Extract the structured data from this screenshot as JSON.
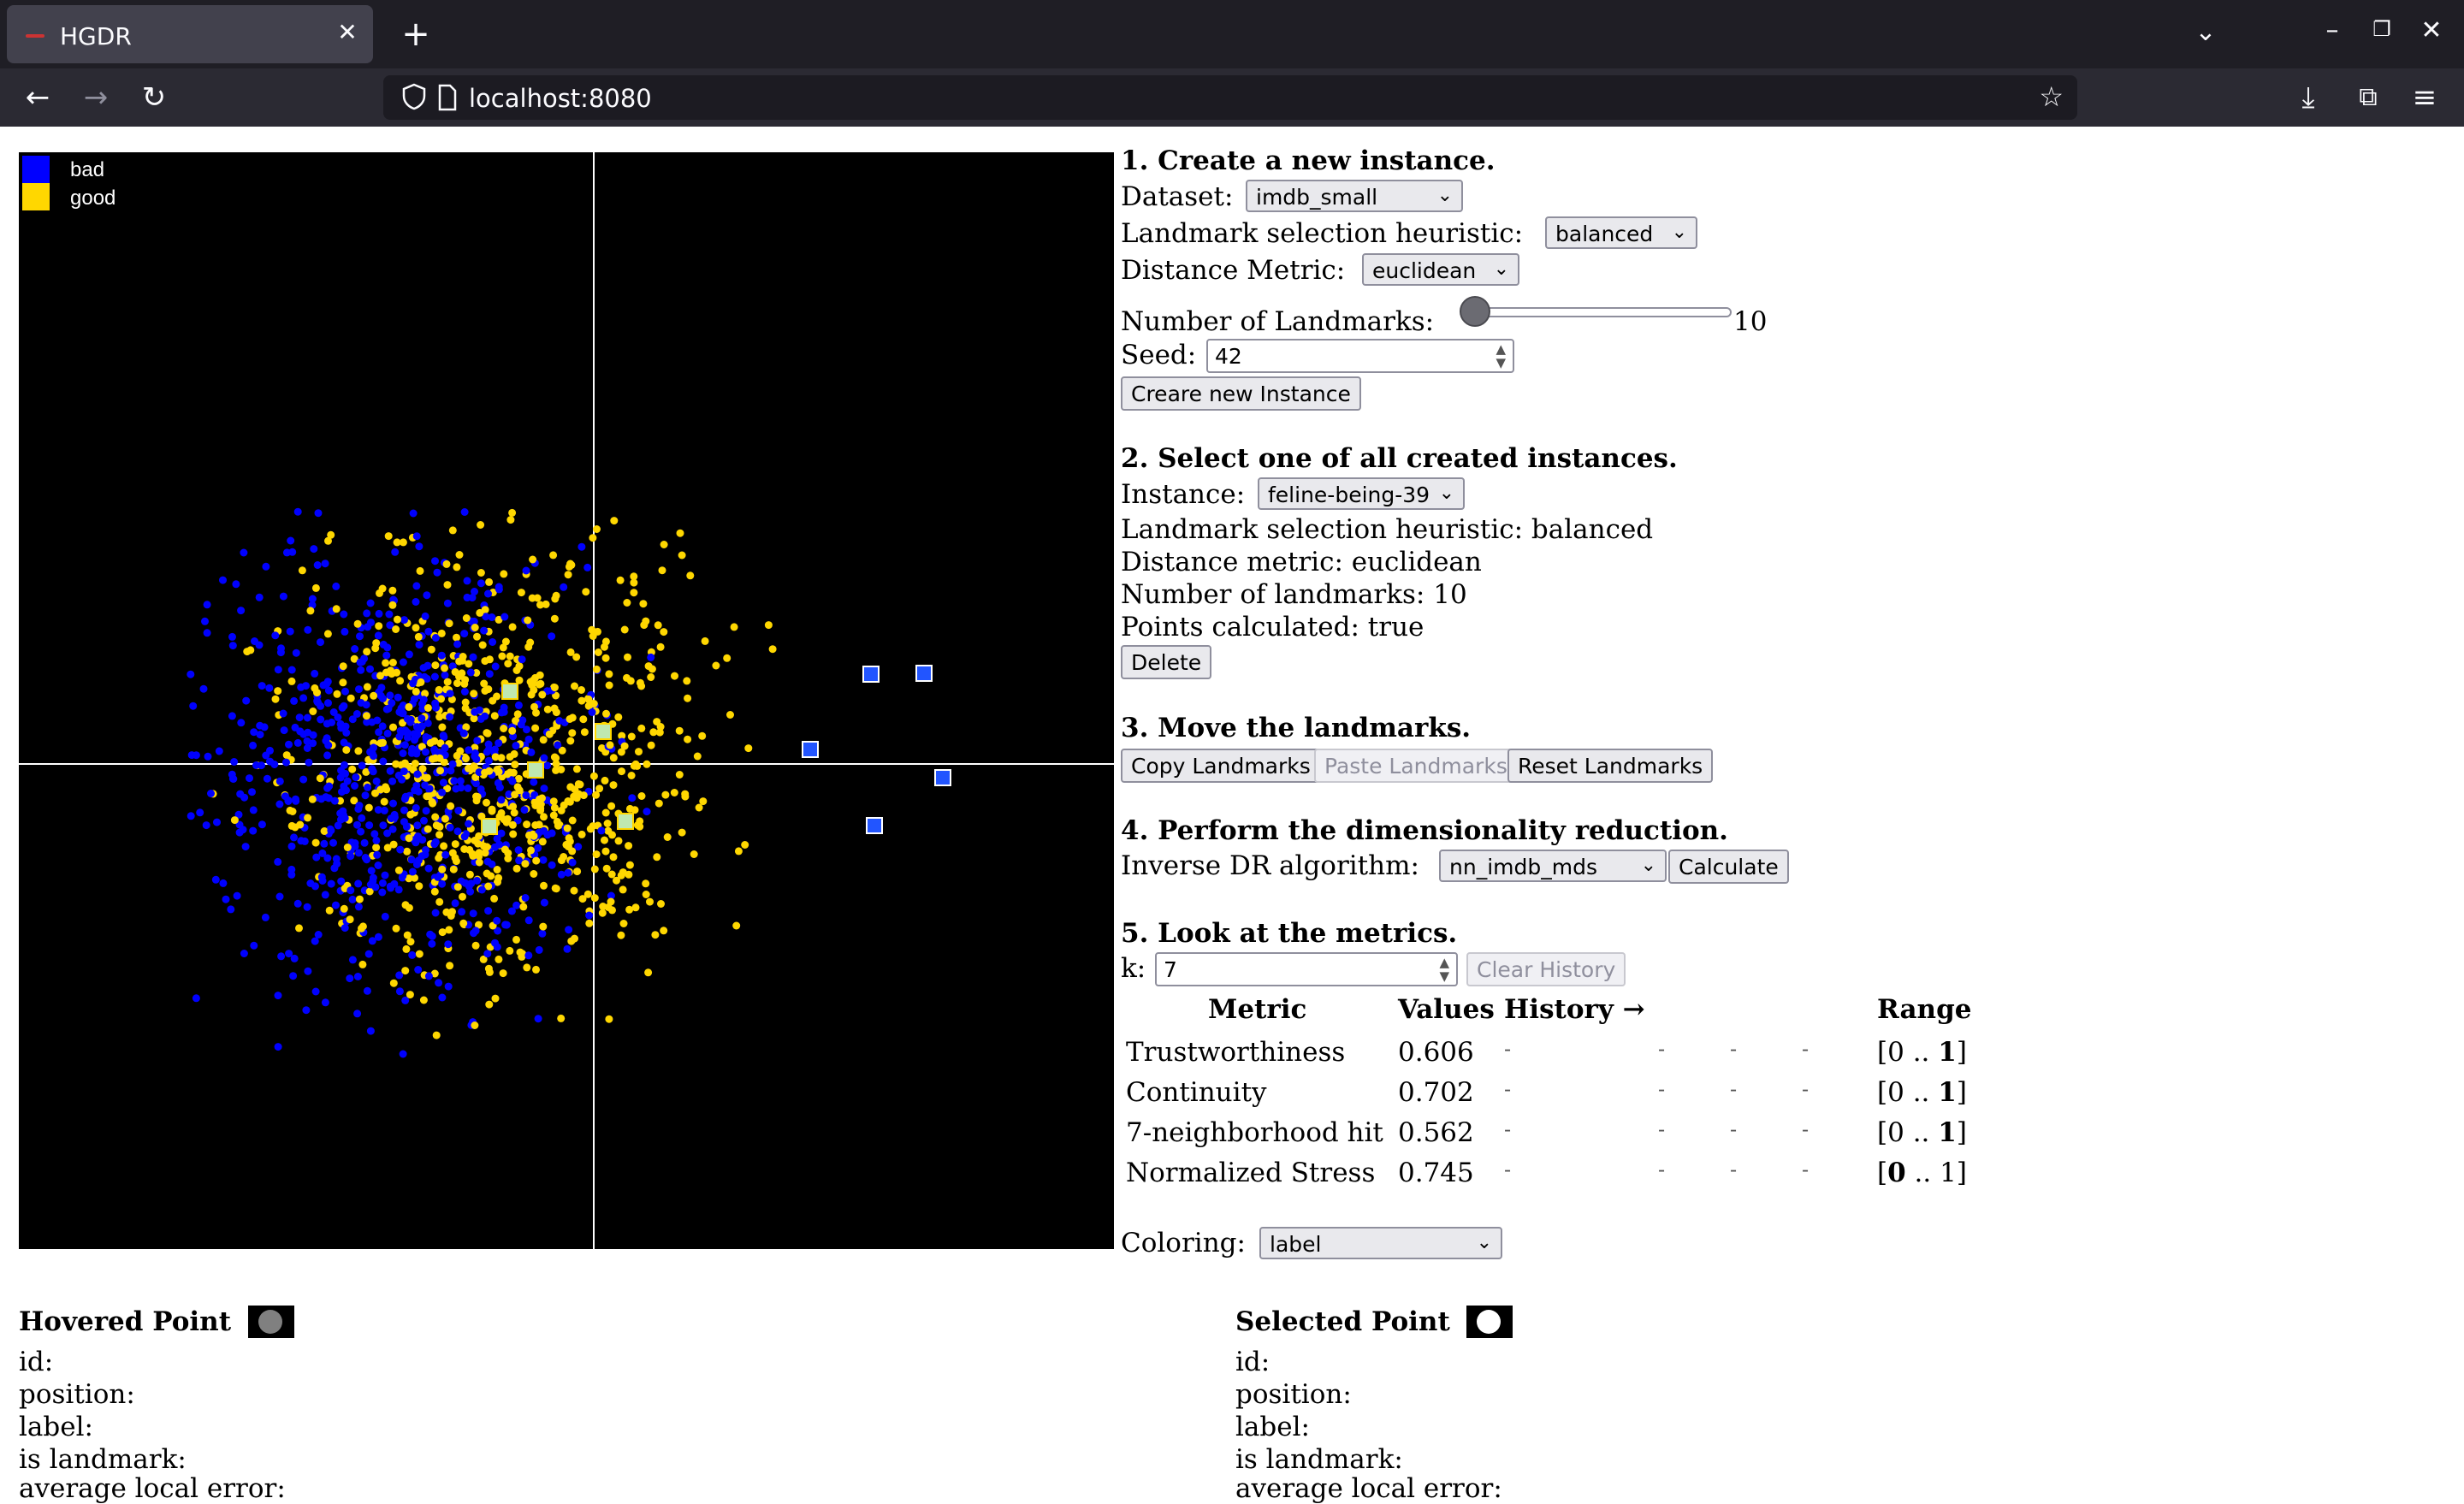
{
  "browser": {
    "tab_title": "HGDR",
    "url": "localhost:8080"
  },
  "legend": [
    {
      "label": "bad",
      "color": "#0000ff"
    },
    {
      "label": "good",
      "color": "#ffd700"
    }
  ],
  "step1": {
    "heading": "1. Create a new instance.",
    "dataset_label": "Dataset:",
    "dataset_value": "imdb_small",
    "heuristic_label": "Landmark selection heuristic:",
    "heuristic_value": "balanced",
    "metric_label": "Distance Metric:",
    "metric_value": "euclidean",
    "landmarks_label": "Number of Landmarks:",
    "landmarks_value": "10",
    "landmarks_slider_fraction": 0.0,
    "seed_label": "Seed:",
    "seed_value": "42",
    "create_button": "Creare new Instance"
  },
  "step2": {
    "heading": "2. Select one of all created instances.",
    "instance_label": "Instance:",
    "instance_value": "feline-being-39",
    "info_heuristic": "Landmark selection heuristic: balanced",
    "info_metric": "Distance metric: euclidean",
    "info_landmarks": "Number of landmarks: 10",
    "info_points": "Points calculated: true",
    "delete_button": "Delete"
  },
  "step3": {
    "heading": "3. Move the landmarks.",
    "copy_button": "Copy Landmarks",
    "paste_button": "Paste Landmarks",
    "reset_button": "Reset Landmarks"
  },
  "step4": {
    "heading": "4. Perform the dimensionality reduction.",
    "algo_label": "Inverse DR algorithm:",
    "algo_value": "nn_imdb_mds",
    "calculate_button": "Calculate"
  },
  "step5": {
    "heading": "5. Look at the metrics.",
    "k_label": "k:",
    "k_value": "7",
    "clear_button": "Clear History",
    "table_headers": [
      "Metric",
      "Values",
      "History →",
      "Range"
    ],
    "rows": [
      {
        "metric": "Trustworthiness",
        "value": "0.606",
        "history": [
          "-",
          "-",
          "-",
          "-"
        ],
        "range_lo": "0",
        "range_sep": " .. ",
        "range_hi": "1",
        "bold": "hi"
      },
      {
        "metric": "Continuity",
        "value": "0.702",
        "history": [
          "-",
          "-",
          "-",
          "-"
        ],
        "range_lo": "0",
        "range_sep": " .. ",
        "range_hi": "1",
        "bold": "hi"
      },
      {
        "metric": "7-neighborhood hit",
        "value": "0.562",
        "history": [
          "-",
          "-",
          "-",
          "-"
        ],
        "range_lo": "0",
        "range_sep": " .. ",
        "range_hi": "1",
        "bold": "hi"
      },
      {
        "metric": "Normalized Stress",
        "value": "0.745",
        "history": [
          "-",
          "-",
          "-",
          "-"
        ],
        "range_lo": "0",
        "range_sep": " .. ",
        "range_hi": "1",
        "bold": "lo"
      }
    ],
    "coloring_label": "Coloring:",
    "coloring_value": "label"
  },
  "hovered": {
    "title": "Hovered Point",
    "dot_color": "#808080",
    "id_label": "id:",
    "position_label": "position:",
    "label_label": "label:",
    "landmark_label": "is landmark:",
    "error_label": "average local error:"
  },
  "selected": {
    "title": "Selected Point",
    "dot_color": "#ffffff",
    "id_label": "id:",
    "position_label": "position:",
    "label_label": "label:",
    "landmark_label": "is landmark:",
    "error_label": "average local error:"
  }
}
